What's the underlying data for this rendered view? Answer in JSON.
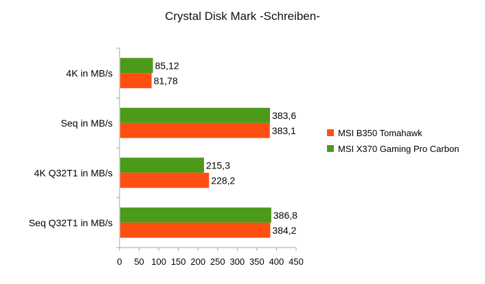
{
  "chart_data": {
    "type": "bar",
    "orientation": "horizontal",
    "title": "Crystal Disk Mark -Schreiben-",
    "categories": [
      "4K in MB/s",
      "Seq in MB/s",
      "4K Q32T1 in MB/s",
      "Seq Q32T1 in MB/s"
    ],
    "series": [
      {
        "name": "MSI X370 Gaming Pro Carbon",
        "color": "#4c9a1a",
        "values": [
          85.12,
          383.6,
          215.3,
          386.8
        ],
        "labels": [
          "85,12",
          "383,6",
          "215,3",
          "386,8"
        ]
      },
      {
        "name": "MSI B350 Tomahawk",
        "color": "#ff4e12",
        "values": [
          81.78,
          383.1,
          228.2,
          384.2
        ],
        "labels": [
          "81,78",
          "383,1",
          "228,2",
          "384,2"
        ]
      }
    ],
    "legend_order": [
      "MSI B350 Tomahawk",
      "MSI X370 Gaming Pro Carbon"
    ],
    "xlim": [
      0,
      450
    ],
    "xticks": [
      "0",
      "50",
      "100",
      "150",
      "200",
      "250",
      "300",
      "350",
      "400",
      "450"
    ],
    "grid": false,
    "legend_position": "right"
  }
}
